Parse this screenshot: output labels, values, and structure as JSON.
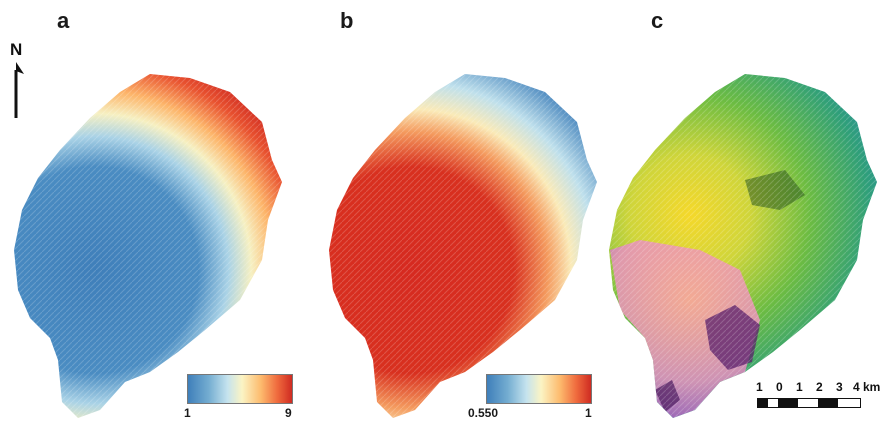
{
  "panels": [
    {
      "label": "a"
    },
    {
      "label": "b"
    },
    {
      "label": "c"
    }
  ],
  "north_arrow": {
    "letter": "N"
  },
  "colorbar_a": {
    "min": "1",
    "max": "9"
  },
  "colorbar_b": {
    "min": "0.550",
    "max": "1"
  },
  "scale_bar": {
    "labels": [
      "1",
      "0",
      "1",
      "2",
      "3"
    ],
    "end_label": "4 km"
  },
  "colors": {
    "blue": "#3f7fba",
    "yellow": "#fbf4c4",
    "red": "#cf2b22",
    "green": "#49b24a",
    "violet": "#7b3fb8"
  }
}
